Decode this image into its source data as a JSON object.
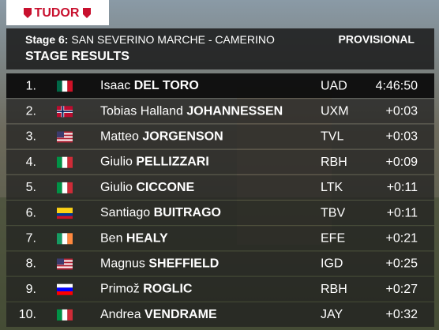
{
  "sponsor": "TUDOR",
  "header": {
    "stage_label": "Stage 6:",
    "stage_name": "SAN SEVERINO MARCHE - CAMERINO",
    "status": "PROVISIONAL",
    "title": "STAGE RESULTS"
  },
  "table": {
    "rows": [
      {
        "rank": "1.",
        "first": "Isaac",
        "last": "DEL TORO",
        "team": "UAD",
        "time": "4:46:50"
      },
      {
        "rank": "2.",
        "first": "Tobias Halland",
        "last": "JOHANNESSEN",
        "team": "UXM",
        "time": "+0:03"
      },
      {
        "rank": "3.",
        "first": "Matteo",
        "last": "JORGENSON",
        "team": "TVL",
        "time": "+0:03"
      },
      {
        "rank": "4.",
        "first": "Giulio",
        "last": "PELLIZZARI",
        "team": "RBH",
        "time": "+0:09"
      },
      {
        "rank": "5.",
        "first": "Giulio",
        "last": "CICCONE",
        "team": "LTK",
        "time": "+0:11"
      },
      {
        "rank": "6.",
        "first": "Santiago",
        "last": "BUITRAGO",
        "team": "TBV",
        "time": "+0:11"
      },
      {
        "rank": "7.",
        "first": "Ben",
        "last": "HEALY",
        "team": "EFE",
        "time": "+0:21"
      },
      {
        "rank": "8.",
        "first": "Magnus",
        "last": "SHEFFIELD",
        "team": "IGD",
        "time": "+0:25"
      },
      {
        "rank": "9.",
        "first": "Primož",
        "last": "ROGLIC",
        "team": "RBH",
        "time": "+0:27"
      },
      {
        "rank": "10.",
        "first": "Andrea",
        "last": "VENDRAME",
        "team": "JAY",
        "time": "+0:32"
      }
    ]
  }
}
